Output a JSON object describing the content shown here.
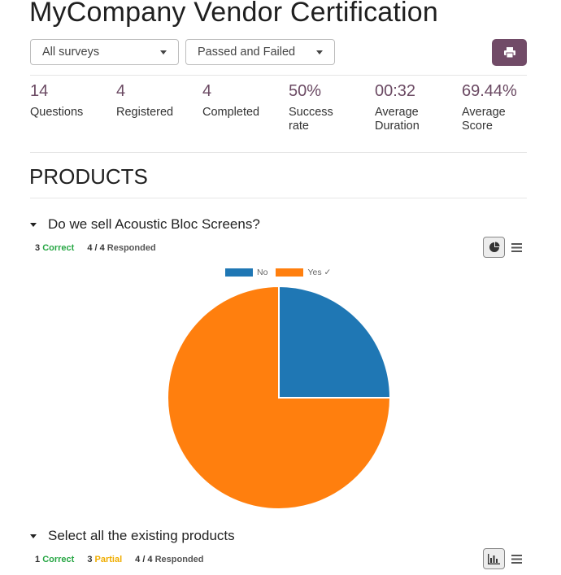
{
  "header": {
    "title": "MyCompany Vendor Certification",
    "survey_filter": "All surveys",
    "result_filter": "Passed and Failed",
    "print_icon": "printer-icon"
  },
  "stats": [
    {
      "value": "14",
      "label": "Questions"
    },
    {
      "value": "4",
      "label": "Registered"
    },
    {
      "value": "4",
      "label": "Completed"
    },
    {
      "value": "50%",
      "label": "Success rate"
    },
    {
      "value": "00:32",
      "label": "Average Duration"
    },
    {
      "value": "69.44%",
      "label": "Average Score"
    }
  ],
  "section": {
    "title": "PRODUCTS"
  },
  "questions": [
    {
      "title": "Do we sell Acoustic Bloc Screens?",
      "correct_count": "3",
      "correct_label": "Correct",
      "responded_value": "4 / 4",
      "responded_label": "Responded"
    },
    {
      "title": "Select all the existing products",
      "correct_count": "1",
      "correct_label": "Correct",
      "partial_count": "3",
      "partial_label": "Partial",
      "responded_value": "4 / 4",
      "responded_label": "Responded"
    }
  ],
  "chart_data": {
    "type": "pie",
    "categories": [
      "No",
      "Yes ✓"
    ],
    "values": [
      1,
      3
    ],
    "colors": [
      "#1f77b4",
      "#ff7f0e"
    ],
    "legend_position": "top"
  }
}
